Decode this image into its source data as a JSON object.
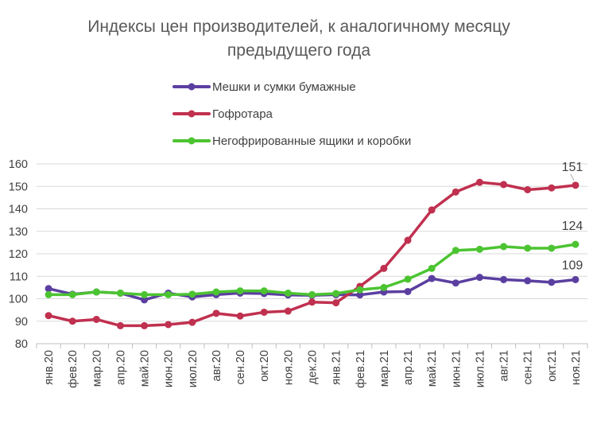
{
  "chart_data": {
    "type": "line",
    "title": "Индексы цен производителей, к аналогичному месяцу предыдущего года",
    "title_lines": [
      "Индексы цен производителей, к аналогичному месяцу",
      "предыдущего года"
    ],
    "xlabel": "",
    "ylabel": "",
    "ylim": [
      80,
      160
    ],
    "yticks": [
      80,
      90,
      100,
      110,
      120,
      130,
      140,
      150,
      160
    ],
    "grid": true,
    "legend": "top-center",
    "categories": [
      "янв.20",
      "фев.20",
      "мар.20",
      "апр.20",
      "май.20",
      "июн.20",
      "июл.20",
      "авг.20",
      "сен.20",
      "окт.20",
      "ноя.20",
      "дек.20",
      "янв.21",
      "фев.21",
      "мар.21",
      "апр.21",
      "май.21",
      "июн.21",
      "июл.21",
      "авг.21",
      "сен.21",
      "окт.21",
      "ноя.21"
    ],
    "series": [
      {
        "name": "Мешки и сумки бумажные",
        "color": "#5b3fa0",
        "values": [
          104.5,
          102,
          103,
          102.5,
          99.5,
          102.5,
          100.8,
          101.8,
          102.5,
          102.3,
          101.7,
          101.5,
          101.8,
          101.7,
          103,
          103.2,
          109,
          107,
          109.5,
          108.5,
          108,
          107.3,
          108.5
        ],
        "end_label": "109"
      },
      {
        "name": "Гофротара",
        "color": "#c0304f",
        "values": [
          92.5,
          90,
          90.8,
          88,
          88,
          88.5,
          89.5,
          93.5,
          92.3,
          94,
          94.5,
          98.5,
          98.2,
          105.5,
          113.5,
          126,
          139.5,
          147.5,
          151.8,
          150.8,
          148.5,
          149.3,
          150.5
        ],
        "end_label": "151"
      },
      {
        "name": "Негофрированные ящики и коробки",
        "color": "#4cc431",
        "values": [
          101.8,
          101.8,
          103,
          102.5,
          101.8,
          101.8,
          102,
          103,
          103.5,
          103.5,
          102.5,
          101.8,
          102.3,
          104,
          105,
          108.7,
          113.5,
          121.5,
          122,
          123.2,
          122.5,
          122.5,
          124.2
        ],
        "end_label": "124"
      }
    ]
  }
}
